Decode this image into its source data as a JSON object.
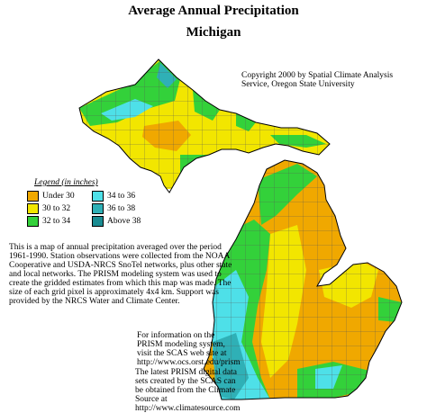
{
  "title": "Average Annual Precipitation",
  "subtitle": "Michigan",
  "copyright": "Copyright 2000 by Spatial Climate Analysis Service, Oregon State University",
  "legend": {
    "title": "Legend (in inches)",
    "items": [
      {
        "label": "Under 30",
        "color": "#f0a800"
      },
      {
        "label": "30 to 32",
        "color": "#f2e600"
      },
      {
        "label": "32 to 34",
        "color": "#33d13a"
      },
      {
        "label": "34 to 36",
        "color": "#4ee0e8"
      },
      {
        "label": "36 to 38",
        "color": "#2fb0b6"
      },
      {
        "label": "Above 38",
        "color": "#1a8c92"
      }
    ]
  },
  "notes": {
    "description": "This is a map of annual precipitation averaged over the period 1961-1990. Station observations were collected from the NOAA Cooperative and USDA-NRCS SnoTel networks, plus other state and local networks.  The PRISM modeling system was used to create the gridded estimates from which this map was made.  The size of each grid pixel is approximately 4x4 km.  Support was provided by the NRCS Water and Climate Center.",
    "prism_info": "For information on the PRISM modeling system, visit the SCAS web site at  http://www.ocs.orst.edu/prism",
    "data_info": "The latest PRISM digital data sets created by the SCAS can be obtained from the Climate Source at http://www.climatesource.com"
  }
}
